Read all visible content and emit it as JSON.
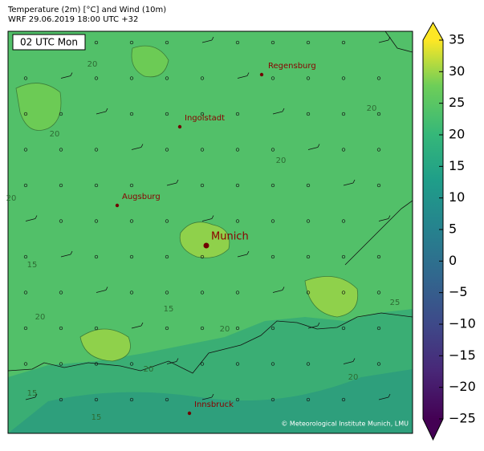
{
  "header": {
    "title": "Temperature (2m) [°C] and Wind (10m)",
    "subtitle": "WRF 29.06.2019 18:00 UTC +32"
  },
  "map": {
    "time_label": "02 UTC Mon",
    "cities": [
      {
        "name": "Regensburg"
      },
      {
        "name": "Ingolstadt"
      },
      {
        "name": "Augsburg"
      },
      {
        "name": "Munich"
      },
      {
        "name": "Innsbruck"
      }
    ],
    "contour_labels": [
      "20",
      "20",
      "20",
      "20",
      "20",
      "15",
      "20",
      "15",
      "25",
      "20",
      "15",
      "15",
      "20",
      "20"
    ],
    "credit": "© Meteorological Institute Munich, LMU"
  },
  "colorbar": {
    "range": [
      -25,
      35
    ],
    "ticks": [
      {
        "value": -25,
        "label": "−25"
      },
      {
        "value": -20,
        "label": "−20"
      },
      {
        "value": -15,
        "label": "−15"
      },
      {
        "value": -10,
        "label": "−10"
      },
      {
        "value": -5,
        "label": "−5"
      },
      0,
      5,
      10,
      15,
      20,
      25,
      30,
      35
    ]
  }
}
